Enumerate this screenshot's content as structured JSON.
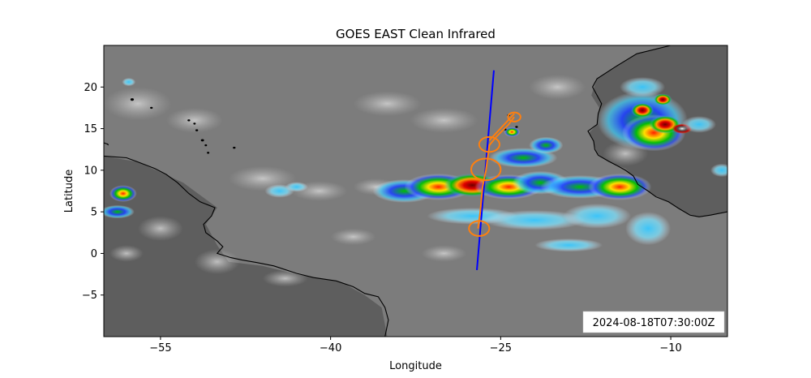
{
  "chart_data": {
    "type": "map",
    "title": "GOES EAST Clean Infrared",
    "xlabel": "Longitude",
    "ylabel": "Latitude",
    "xlim": [
      -60,
      -5
    ],
    "ylim": [
      -10,
      25
    ],
    "xticks": [
      -55,
      -40,
      -25,
      -10
    ],
    "yticks": [
      -5,
      0,
      5,
      10,
      15,
      20
    ],
    "timestamp": "2024-08-18T07:30:00Z",
    "colors": {
      "flight_track": "#0000ff",
      "dropsonde_circles": "#ff7f0e",
      "coastline": "#000000"
    },
    "flight_track": {
      "x": [
        -27.1,
        -25.6
      ],
      "y": [
        -2.0,
        22.0
      ]
    },
    "orange_path": {
      "x": [
        -27.0,
        -26.8,
        -26.6,
        -26.3,
        -26.0,
        -25.4,
        -24.3,
        -23.8
      ],
      "y": [
        3.0,
        5.0,
        8.0,
        10.0,
        13.0,
        14.0,
        15.5,
        16.4
      ]
    },
    "circles": [
      {
        "lon": -26.9,
        "lat": 3.0,
        "r": 0.9
      },
      {
        "lon": -26.3,
        "lat": 10.1,
        "r": 1.3
      },
      {
        "lon": -26.0,
        "lat": 13.1,
        "r": 0.9
      },
      {
        "lon": -23.8,
        "lat": 16.4,
        "r": 0.55
      }
    ],
    "storms": [
      {
        "lon": -58.3,
        "lat": 7.2,
        "rx": 1.2,
        "ry": 1.0,
        "level": 3
      },
      {
        "lon": -58.8,
        "lat": 5.0,
        "rx": 1.5,
        "ry": 0.8,
        "level": 2
      },
      {
        "lon": -57.8,
        "lat": 20.6,
        "rx": 0.6,
        "ry": 0.5,
        "level": 1
      },
      {
        "lon": -44.5,
        "lat": 7.5,
        "rx": 1.3,
        "ry": 0.8,
        "level": 1
      },
      {
        "lon": -43.0,
        "lat": 8.0,
        "rx": 1.0,
        "ry": 0.6,
        "level": 1
      },
      {
        "lon": -33.5,
        "lat": 7.5,
        "rx": 2.8,
        "ry": 1.4,
        "level": 2
      },
      {
        "lon": -30.5,
        "lat": 8.0,
        "rx": 3.0,
        "ry": 1.6,
        "level": 3
      },
      {
        "lon": -27.5,
        "lat": 8.2,
        "rx": 2.5,
        "ry": 1.4,
        "level": 4
      },
      {
        "lon": -24.3,
        "lat": 8.0,
        "rx": 3.0,
        "ry": 1.5,
        "level": 3
      },
      {
        "lon": -21.5,
        "lat": 8.5,
        "rx": 2.5,
        "ry": 1.4,
        "level": 2
      },
      {
        "lon": -18.0,
        "lat": 8.0,
        "rx": 3.5,
        "ry": 1.4,
        "level": 2
      },
      {
        "lon": -14.5,
        "lat": 8.0,
        "rx": 2.8,
        "ry": 1.6,
        "level": 3
      },
      {
        "lon": -23.0,
        "lat": 11.5,
        "rx": 3.0,
        "ry": 1.2,
        "level": 2
      },
      {
        "lon": -21.0,
        "lat": 13.0,
        "rx": 1.5,
        "ry": 1.0,
        "level": 2
      },
      {
        "lon": -24.0,
        "lat": 14.6,
        "rx": 0.7,
        "ry": 0.6,
        "level": 3
      },
      {
        "lon": -27.5,
        "lat": 4.5,
        "rx": 4.0,
        "ry": 1.0,
        "level": 1
      },
      {
        "lon": -22.0,
        "lat": 4.0,
        "rx": 4.5,
        "ry": 1.2,
        "level": 1
      },
      {
        "lon": -16.5,
        "lat": 4.5,
        "rx": 3.0,
        "ry": 1.5,
        "level": 1
      },
      {
        "lon": -12.0,
        "lat": 3.0,
        "rx": 2.0,
        "ry": 2.0,
        "level": 1
      },
      {
        "lon": -19.0,
        "lat": 1.0,
        "rx": 3.0,
        "ry": 0.8,
        "level": 1
      },
      {
        "lon": -12.5,
        "lat": 16.0,
        "rx": 4.0,
        "ry": 3.5,
        "level": 2
      },
      {
        "lon": -11.5,
        "lat": 14.5,
        "rx": 2.8,
        "ry": 2.2,
        "level": 3
      },
      {
        "lon": -10.5,
        "lat": 15.5,
        "rx": 1.4,
        "ry": 1.1,
        "level": 4
      },
      {
        "lon": -12.5,
        "lat": 17.2,
        "rx": 1.0,
        "ry": 0.9,
        "level": 4
      },
      {
        "lon": -10.7,
        "lat": 18.5,
        "rx": 0.8,
        "ry": 0.7,
        "level": 4
      },
      {
        "lon": -12.5,
        "lat": 20.0,
        "rx": 2.0,
        "ry": 1.2,
        "level": 1
      },
      {
        "lon": -9.0,
        "lat": 15.0,
        "rx": 0.9,
        "ry": 0.6,
        "level": 5
      },
      {
        "lon": -7.5,
        "lat": 15.5,
        "rx": 1.5,
        "ry": 1.0,
        "level": 1
      },
      {
        "lon": -5.5,
        "lat": 10.0,
        "rx": 1.0,
        "ry": 0.8,
        "level": 1
      }
    ],
    "land_overlays": [
      {
        "label": "south-america",
        "points": [
          [
            -60,
            11.7
          ],
          [
            -57,
            11.0
          ],
          [
            -53,
            8.5
          ],
          [
            -50,
            5.5
          ],
          [
            -51,
            3.5
          ],
          [
            -50,
            1.0
          ],
          [
            -49,
            -1.0
          ],
          [
            -46,
            -1.5
          ],
          [
            -43,
            -2.5
          ],
          [
            -39,
            -3.5
          ],
          [
            -37,
            -5.0
          ],
          [
            -35.5,
            -6.5
          ],
          [
            -35,
            -10
          ],
          [
            -60,
            -10
          ]
        ]
      },
      {
        "label": "africa",
        "points": [
          [
            -5,
            35
          ],
          [
            -10,
            35
          ],
          [
            -10,
            25
          ],
          [
            -13,
            24
          ],
          [
            -16.5,
            21
          ],
          [
            -17,
            19
          ],
          [
            -16.3,
            17.5
          ],
          [
            -16.5,
            15.5
          ],
          [
            -17.2,
            14.5
          ],
          [
            -16.8,
            13.3
          ],
          [
            -16.5,
            12.0
          ],
          [
            -15.5,
            11.0
          ],
          [
            -14,
            10.2
          ],
          [
            -13.3,
            9.2
          ],
          [
            -12.5,
            8.0
          ],
          [
            -11.5,
            7.0
          ],
          [
            -10,
            6.0
          ],
          [
            -8.5,
            4.8
          ],
          [
            -7.5,
            4.4
          ],
          [
            -5,
            5.0
          ]
        ]
      }
    ],
    "coastlines": [
      [
        [
          -60,
          11.7
        ],
        [
          -58,
          11.5
        ],
        [
          -57,
          11.0
        ],
        [
          -55.5,
          10.2
        ],
        [
          -54.5,
          9.5
        ],
        [
          -53.5,
          8.5
        ],
        [
          -52.5,
          7.2
        ],
        [
          -51.5,
          6.2
        ],
        [
          -50.2,
          5.5
        ],
        [
          -50.5,
          4.5
        ],
        [
          -51.2,
          3.5
        ],
        [
          -51.0,
          2.5
        ],
        [
          -50.0,
          1.5
        ],
        [
          -49.5,
          0.8
        ],
        [
          -50.0,
          0.0
        ],
        [
          -48.8,
          -0.5
        ],
        [
          -47.8,
          -0.8
        ],
        [
          -46.5,
          -1.1
        ],
        [
          -45.0,
          -1.5
        ],
        [
          -43.0,
          -2.4
        ],
        [
          -41.5,
          -2.9
        ],
        [
          -39.5,
          -3.3
        ],
        [
          -38.0,
          -4.0
        ],
        [
          -37.0,
          -4.8
        ],
        [
          -35.8,
          -5.2
        ],
        [
          -35.2,
          -6.5
        ],
        [
          -34.9,
          -8.0
        ],
        [
          -35.2,
          -10
        ]
      ],
      [
        [
          -5,
          35
        ],
        [
          -10,
          35
        ],
        [
          -10,
          25
        ],
        [
          -13,
          24
        ],
        [
          -14.8,
          22.5
        ],
        [
          -16.5,
          21.0
        ],
        [
          -16.9,
          20.0
        ],
        [
          -16.5,
          19.0
        ],
        [
          -16.1,
          18.0
        ],
        [
          -16.4,
          16.8
        ],
        [
          -16.5,
          15.5
        ],
        [
          -17.3,
          14.7
        ],
        [
          -16.8,
          13.5
        ],
        [
          -16.7,
          12.5
        ],
        [
          -16.4,
          11.8
        ],
        [
          -15.5,
          11.1
        ],
        [
          -14.8,
          10.6
        ],
        [
          -14.0,
          10.0
        ],
        [
          -13.3,
          9.3
        ],
        [
          -12.9,
          8.3
        ],
        [
          -12.0,
          7.5
        ],
        [
          -11.3,
          6.8
        ],
        [
          -10.2,
          6.2
        ],
        [
          -9.3,
          5.4
        ],
        [
          -8.3,
          4.6
        ],
        [
          -7.5,
          4.4
        ],
        [
          -6.5,
          4.6
        ],
        [
          -5,
          5.0
        ]
      ],
      [
        [
          -62,
          16.9
        ],
        [
          -61.2,
          16.6
        ],
        [
          -61.5,
          16.1
        ]
      ],
      [
        [
          -61.1,
          14.8
        ],
        [
          -61.0,
          14.5
        ]
      ],
      [
        [
          -60.9,
          14.0
        ],
        [
          -61.0,
          13.8
        ]
      ],
      [
        [
          -59.7,
          13.2
        ],
        [
          -59.6,
          13.0
        ]
      ],
      [
        [
          -61.6,
          12.2
        ],
        [
          -61.7,
          12.0
        ]
      ],
      [
        [
          -61.6,
          10.8
        ],
        [
          -60.9,
          10.7
        ],
        [
          -61.0,
          10.1
        ],
        [
          -61.9,
          10.1
        ]
      ],
      [
        [
          -60,
          13.3
        ],
        [
          -59.6,
          13.1
        ]
      ]
    ],
    "islands": [
      {
        "lon": -60.7,
        "lat": 20.5,
        "r": 0.18
      },
      {
        "lon": -57.5,
        "lat": 18.5,
        "r": 0.15
      },
      {
        "lon": -55.8,
        "lat": 17.5,
        "r": 0.12
      },
      {
        "lon": -52.5,
        "lat": 16.0,
        "r": 0.12
      },
      {
        "lon": -52.0,
        "lat": 15.6,
        "r": 0.1
      },
      {
        "lon": -51.8,
        "lat": 14.8,
        "r": 0.12
      },
      {
        "lon": -51.3,
        "lat": 13.6,
        "r": 0.14
      },
      {
        "lon": -51.0,
        "lat": 13.0,
        "r": 0.1
      },
      {
        "lon": -50.8,
        "lat": 12.1,
        "r": 0.1
      },
      {
        "lon": -48.5,
        "lat": 12.7,
        "r": 0.12
      },
      {
        "lon": -24.3,
        "lat": 16.6,
        "r": 0.12
      },
      {
        "lon": -23.6,
        "lat": 15.2,
        "r": 0.12
      },
      {
        "lon": -24.6,
        "lat": 14.9,
        "r": 0.1
      },
      {
        "lon": -8.3,
        "lat": -7.9,
        "r": 0.08
      }
    ]
  }
}
